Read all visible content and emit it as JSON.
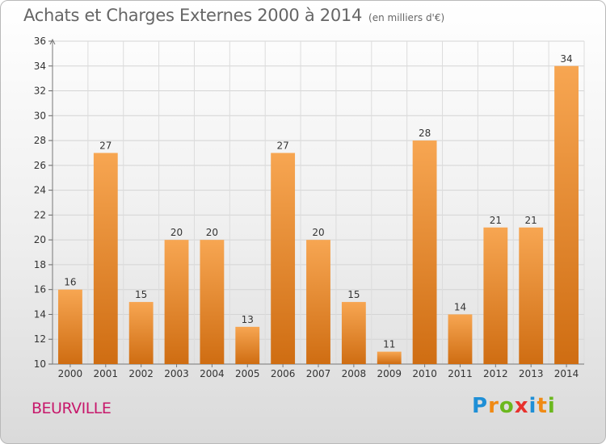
{
  "title": "Achats et Charges Externes 2000 à 2014",
  "unit_note": "(en milliers d'€)",
  "commune": "BEURVILLE",
  "logo": {
    "letters": [
      "P",
      "r",
      "o",
      "x",
      "i",
      "t",
      "i"
    ],
    "colors": [
      "#1f8fd6",
      "#f08a14",
      "#6bb81e",
      "#e8322e",
      "#1f8fd6",
      "#f08a14",
      "#6bb81e"
    ]
  },
  "colors": {
    "bar_top": "#f7a652",
    "bar_bottom": "#cf6d12",
    "title": "#666666",
    "commune": "#c7186b"
  },
  "chart_data": {
    "type": "bar",
    "categories": [
      "2000",
      "2001",
      "2002",
      "2003",
      "2004",
      "2005",
      "2006",
      "2007",
      "2008",
      "2009",
      "2010",
      "2011",
      "2012",
      "2013",
      "2014"
    ],
    "values": [
      16,
      27,
      15,
      20,
      20,
      13,
      27,
      20,
      15,
      11,
      28,
      14,
      21,
      21,
      34
    ],
    "data_labels": [
      "16",
      "27",
      "15",
      "20",
      "20",
      "13",
      "27",
      "20",
      "15",
      "11",
      "28",
      "14",
      "21",
      "21",
      "34"
    ],
    "yticks": [
      10,
      12,
      14,
      16,
      18,
      20,
      22,
      24,
      26,
      28,
      30,
      32,
      34,
      36
    ],
    "ylim": [
      10,
      36
    ],
    "grid": true
  }
}
